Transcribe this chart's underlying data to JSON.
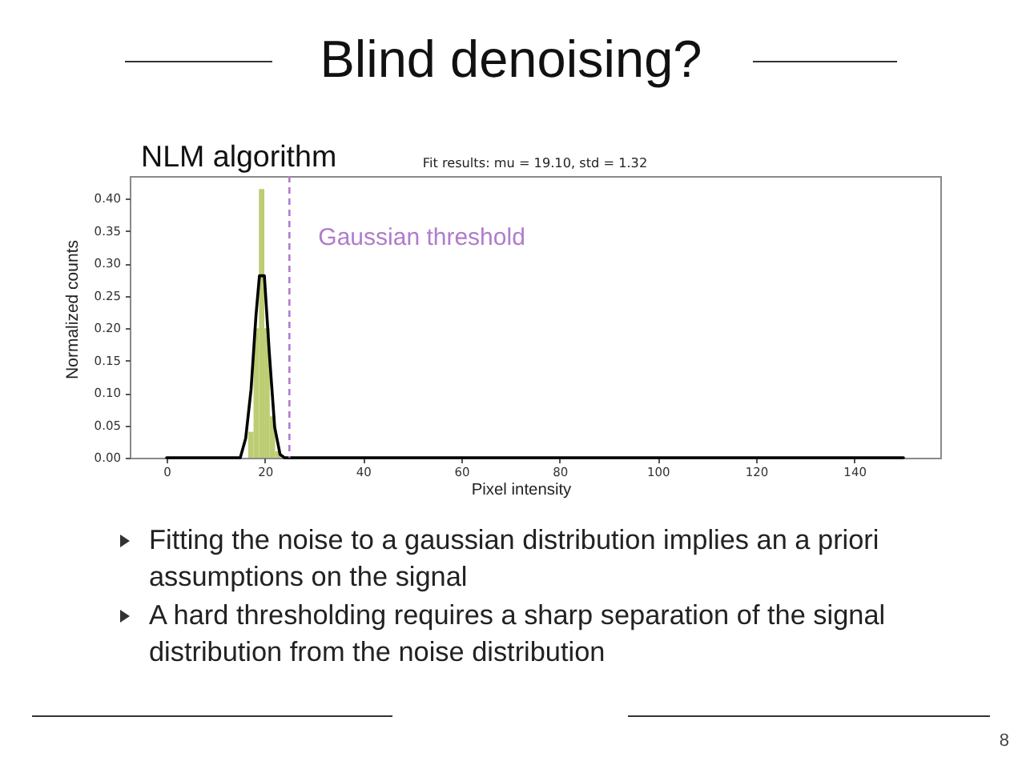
{
  "chart_data": {
    "type": "histogram",
    "title": "Blind denoising?",
    "subtitle": "NLM algorithm",
    "xlabel": "Pixel intensity",
    "ylabel": "Normalized counts",
    "bins": [
      16.6,
      17.7,
      18.8,
      19.9,
      21.0,
      22.1,
      23.2
    ],
    "values": [
      0.04,
      0.2,
      0.415,
      0.2,
      0.064,
      0.01
    ],
    "color": "#bccd74",
    "series": [
      {
        "type": "line",
        "color": "#000000",
        "x": [
          0,
          15.0,
          16.1,
          17.2,
          18.2,
          18.9,
          19.9,
          20.9,
          22.0,
          23.1,
          24.0,
          150
        ],
        "values": [
          0,
          0,
          0.03,
          0.106,
          0.22,
          0.281,
          0.281,
          0.163,
          0.047,
          0.005,
          0,
          0
        ]
      }
    ],
    "xlim": [
      -7.5,
      157.5
    ],
    "xticks": [
      0,
      20,
      40,
      60,
      80,
      100,
      120,
      140
    ],
    "ylim": [
      0,
      0.435
    ],
    "yticks": [
      {
        "value": 0,
        "label": "0.00"
      },
      0.05,
      {
        "value": 0.1,
        "label": "0.10"
      },
      0.15,
      {
        "value": 0.2,
        "label": "0.20"
      },
      0.25,
      {
        "value": 0.3,
        "label": "0.30"
      },
      0.35,
      {
        "value": 0.4,
        "label": "0.40"
      }
    ],
    "ref_lines": [
      {
        "axis": "x",
        "value": 25,
        "label": "Gaussian threshold",
        "color": "#b07ccc",
        "line_style": "dashed"
      }
    ],
    "grid": false,
    "annotations": [
      "Fit results: mu = 19.10, std = 1.32",
      "Fitting the noise to a gaussian distribution implies an a priori assumptions on the signal",
      "A hard thresholding requires a sharp separation of the signal distribution from the noise distribution",
      "8"
    ]
  }
}
